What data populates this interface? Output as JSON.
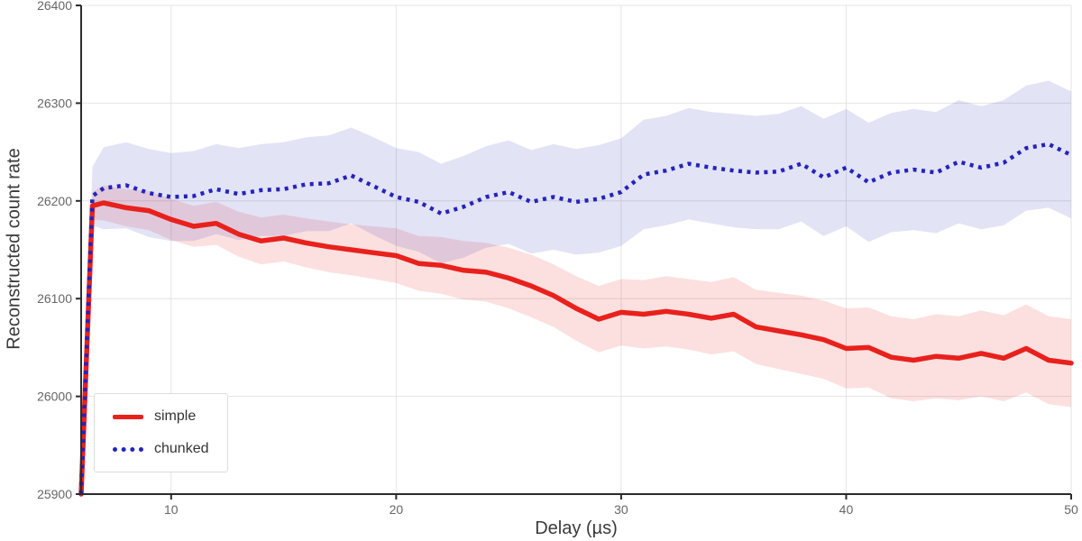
{
  "chart_data": {
    "type": "line",
    "title": "",
    "xlabel": "Delay (µs)",
    "ylabel": "Reconstructed count rate",
    "xlim": [
      6,
      50
    ],
    "ylim": [
      25900,
      26400
    ],
    "xticks": [
      10,
      20,
      30,
      40,
      50
    ],
    "yticks": [
      25900,
      26000,
      26100,
      26200,
      26300,
      26400
    ],
    "grid": true,
    "legend_position": "lower-left",
    "colors": {
      "background": "#ffffff",
      "grid": "#e4e4e4",
      "spine": "#2b2b2b",
      "tick_label": "#666666",
      "axis_label": "#3a3a3a"
    },
    "x": [
      6,
      6.5,
      7,
      8,
      9,
      10,
      11,
      12,
      13,
      14,
      15,
      16,
      17,
      18,
      19,
      20,
      21,
      22,
      23,
      24,
      25,
      26,
      27,
      28,
      29,
      30,
      31,
      32,
      33,
      34,
      35,
      36,
      37,
      38,
      39,
      40,
      41,
      42,
      43,
      44,
      45,
      46,
      47,
      48,
      49,
      50
    ],
    "series": [
      {
        "name": "simple",
        "color": "#e8211d",
        "line_style": "solid",
        "line_width": 5.5,
        "band_opacity": 0.14,
        "y": [
          25900,
          26195,
          26198,
          26193,
          26190,
          26181,
          26174,
          26177,
          26166,
          26159,
          26162,
          26157,
          26153,
          26150,
          26147,
          26144,
          26136,
          26134,
          26129,
          26127,
          26121,
          26113,
          26103,
          26090,
          26079,
          26086,
          26084,
          26087,
          26084,
          26080,
          26084,
          26071,
          26067,
          26063,
          26058,
          26049,
          26050,
          26040,
          26037,
          26041,
          26039,
          26044,
          26039,
          26049,
          26037,
          26034
        ],
        "band": [
          3,
          14,
          18,
          19,
          20,
          21,
          21,
          22,
          23,
          24,
          24,
          25,
          26,
          26,
          27,
          28,
          28,
          29,
          30,
          30,
          31,
          32,
          32,
          33,
          34,
          34,
          35,
          36,
          36,
          37,
          38,
          38,
          39,
          40,
          40,
          41,
          41,
          42,
          42,
          43,
          43,
          44,
          44,
          45,
          45,
          45
        ]
      },
      {
        "name": "chunked",
        "color": "#2424bb",
        "line_style": "dotted",
        "line_width": 4.5,
        "band_opacity": 0.13,
        "y": [
          25900,
          26205,
          26213,
          26216,
          26208,
          26204,
          26205,
          26212,
          26207,
          26211,
          26212,
          26217,
          26218,
          26226,
          26215,
          26204,
          26199,
          26187,
          26194,
          26204,
          26209,
          26199,
          26204,
          26199,
          26202,
          26209,
          26227,
          26231,
          26238,
          26234,
          26231,
          26229,
          26230,
          26238,
          26224,
          26234,
          26219,
          26229,
          26232,
          26229,
          26240,
          26234,
          26239,
          26254,
          26258,
          26247
        ],
        "band": [
          3,
          30,
          42,
          44,
          45,
          45,
          46,
          46,
          47,
          47,
          48,
          48,
          49,
          49,
          50,
          50,
          51,
          51,
          52,
          52,
          53,
          53,
          54,
          54,
          55,
          55,
          56,
          56,
          57,
          57,
          58,
          58,
          59,
          59,
          60,
          60,
          61,
          61,
          62,
          62,
          63,
          63,
          64,
          64,
          65,
          65
        ]
      }
    ]
  }
}
